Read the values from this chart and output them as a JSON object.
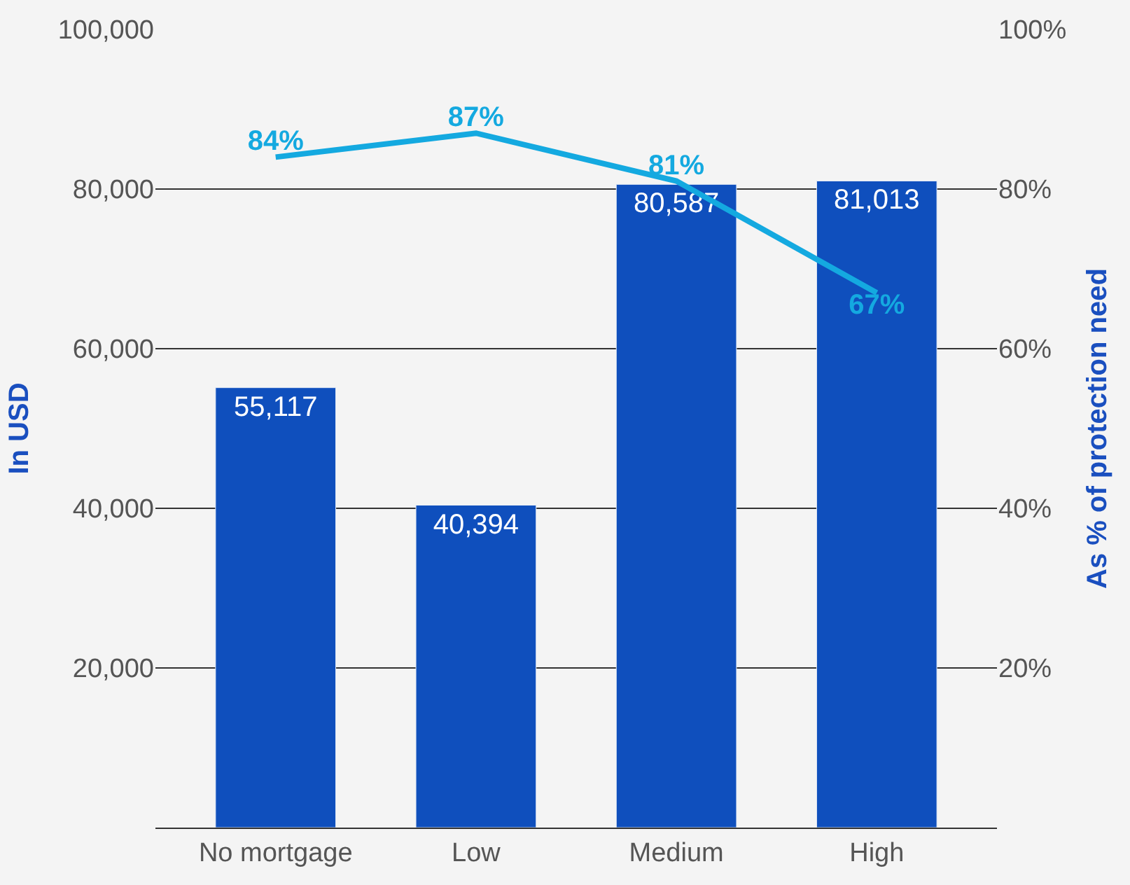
{
  "chart_data": {
    "type": "bar",
    "categories": [
      "No mortgage",
      "Low",
      "Medium",
      "High"
    ],
    "ylabel": "In USD",
    "y2label": "As % of protection need",
    "series": [
      {
        "color": "#0f4fbd",
        "values": [
          55117,
          40394,
          80587,
          81013
        ],
        "value_labels": [
          "55,117",
          "40,394",
          "80,587",
          "81,013"
        ]
      },
      {
        "type": "line",
        "axis": "y2",
        "color": "#14a9e0",
        "values": [
          84,
          87,
          81,
          67
        ],
        "value_labels": [
          "84%",
          "87%",
          "81%",
          "67%"
        ],
        "marker": "none"
      }
    ],
    "ylim": [
      0,
      100000
    ],
    "yticks": [
      {
        "value": 20000,
        "label": "20,000"
      },
      {
        "value": 40000,
        "label": "40,000"
      },
      {
        "value": 60000,
        "label": "60,000"
      },
      {
        "value": 80000,
        "label": "80,000"
      },
      {
        "value": 100000,
        "label": "100,000"
      }
    ],
    "y2lim": [
      0,
      100
    ],
    "y2ticks": [
      {
        "value": 20,
        "label": "20%"
      },
      {
        "value": 40,
        "label": "40%"
      },
      {
        "value": 60,
        "label": "60%"
      },
      {
        "value": 80,
        "label": "80%"
      },
      {
        "value": 100,
        "label": "100%"
      }
    ],
    "grid": "y",
    "legend": false
  }
}
